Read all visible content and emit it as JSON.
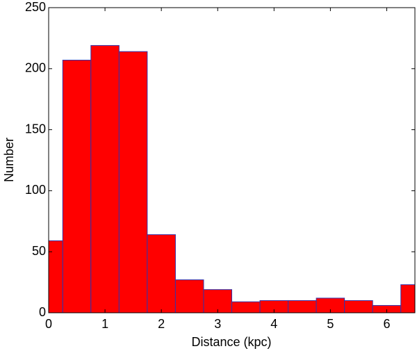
{
  "chart_data": {
    "type": "histogram",
    "xlabel": "Distance (kpc)",
    "ylabel": "Number",
    "bins": [
      -0.25,
      0.25,
      0.75,
      1.25,
      1.75,
      2.25,
      2.75,
      3.25,
      3.75,
      4.25,
      4.75,
      5.25,
      5.75,
      6.25,
      6.75
    ],
    "values": [
      59,
      207,
      219,
      214,
      64,
      27,
      19,
      9,
      10,
      10,
      12,
      10,
      6,
      23
    ],
    "color": "#ff0000",
    "edgecolor": "#3333aa",
    "xlim": [
      0,
      6.5
    ],
    "xticks": [
      0,
      1,
      2,
      3,
      4,
      5,
      6
    ],
    "ylim": [
      0,
      250
    ],
    "yticks": [
      0,
      50,
      100,
      150,
      200,
      250
    ]
  }
}
